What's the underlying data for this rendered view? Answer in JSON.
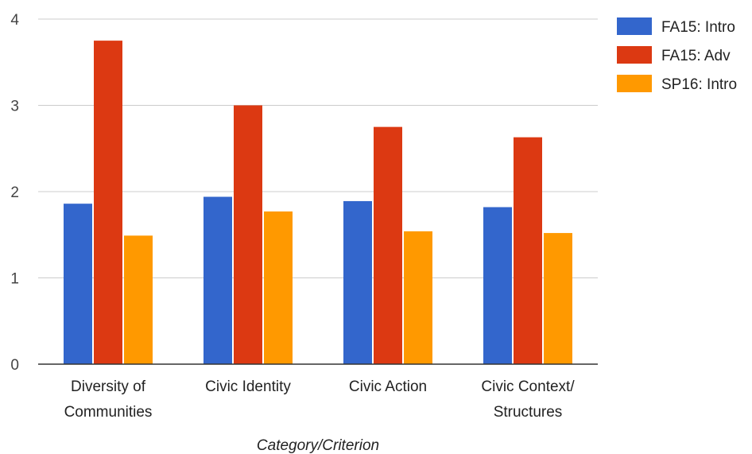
{
  "chart_data": {
    "type": "bar",
    "categories": [
      [
        "Diversity of",
        "Communities"
      ],
      [
        "Civic Identity"
      ],
      [
        "Civic Action"
      ],
      [
        "Civic Context/",
        "Structures"
      ]
    ],
    "series": [
      {
        "name": "FA15: Intro",
        "color": "#3366cc",
        "values": [
          1.86,
          1.94,
          1.89,
          1.82
        ]
      },
      {
        "name": "FA15: Adv",
        "color": "#dc3912",
        "values": [
          3.75,
          3.0,
          2.75,
          2.63
        ]
      },
      {
        "name": "SP16: Intro",
        "color": "#ff9900",
        "values": [
          1.49,
          1.77,
          1.54,
          1.52
        ]
      }
    ],
    "xlabel": "Category/Criterion",
    "ylabel": "",
    "ylim": [
      0,
      4
    ],
    "yticks": [
      "0",
      "1",
      "2",
      "3",
      "4"
    ],
    "grid": true,
    "legend_position": "right"
  }
}
